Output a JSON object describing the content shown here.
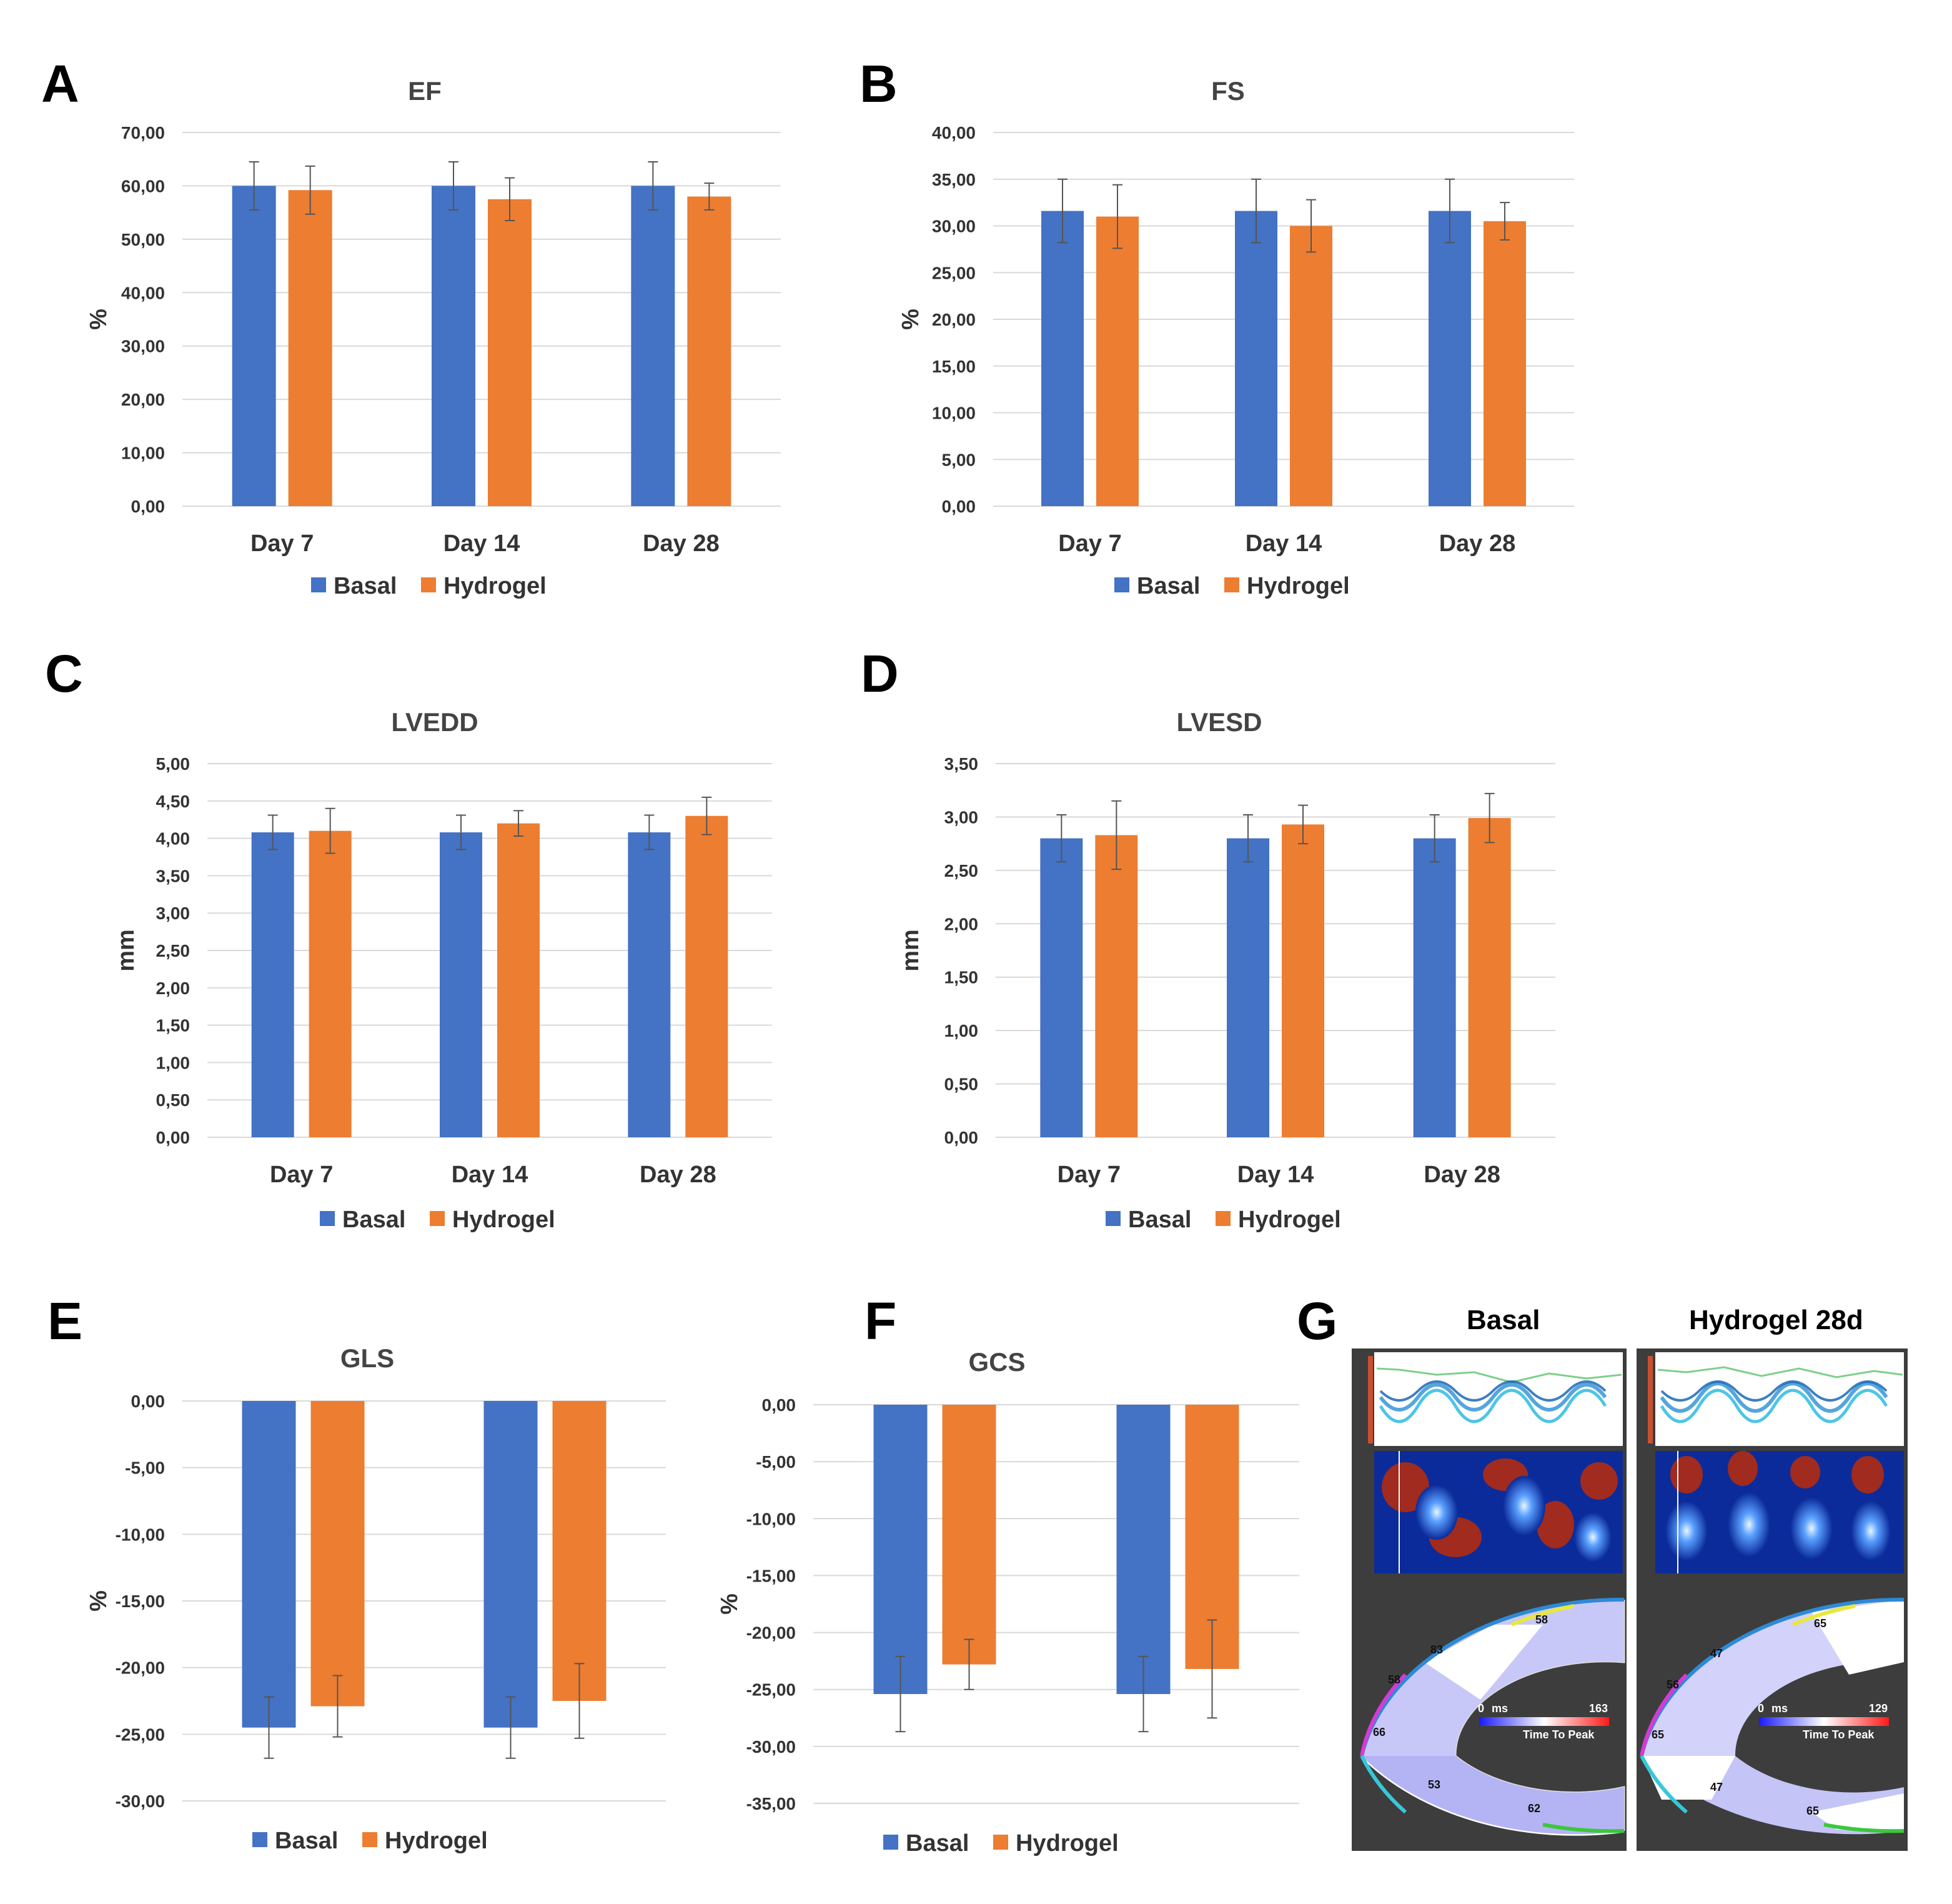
{
  "colors": {
    "basal": "#4472C4",
    "hydrogel": "#ED7D31",
    "grid": "#d9d9d9",
    "error": "#555555"
  },
  "legend": {
    "basal": "Basal",
    "hydrogel": "Hydrogel"
  },
  "panel_letters": [
    "A",
    "B",
    "C",
    "D",
    "E",
    "F",
    "G"
  ],
  "chart_data": [
    {
      "id": "A",
      "type": "bar",
      "title": "EF",
      "ylabel": "%",
      "ylim": [
        0,
        70
      ],
      "ystep": 10,
      "categories": [
        "Day 7",
        "Day 14",
        "Day 28"
      ],
      "yticks": [
        "0,00",
        "10,00",
        "20,00",
        "30,00",
        "40,00",
        "50,00",
        "60,00",
        "70,00"
      ],
      "series": [
        {
          "name": "Basal",
          "values": [
            60.0,
            60.0,
            60.0
          ],
          "errors": [
            4.5,
            4.5,
            4.5
          ]
        },
        {
          "name": "Hydrogel",
          "values": [
            59.2,
            57.5,
            58.0
          ],
          "errors": [
            4.5,
            4.0,
            2.5
          ]
        }
      ]
    },
    {
      "id": "B",
      "type": "bar",
      "title": "FS",
      "ylabel": "%",
      "ylim": [
        0,
        40
      ],
      "ystep": 5,
      "categories": [
        "Day 7",
        "Day 14",
        "Day 28"
      ],
      "yticks": [
        "0,00",
        "5,00",
        "10,00",
        "15,00",
        "20,00",
        "25,00",
        "30,00",
        "35,00",
        "40,00"
      ],
      "series": [
        {
          "name": "Basal",
          "values": [
            31.6,
            31.6,
            31.6
          ],
          "errors": [
            3.4,
            3.4,
            3.4
          ]
        },
        {
          "name": "Hydrogel",
          "values": [
            31.0,
            30.0,
            30.5
          ],
          "errors": [
            3.4,
            2.8,
            2.0
          ]
        }
      ]
    },
    {
      "id": "C",
      "type": "bar",
      "title": "LVEDD",
      "ylabel": "mm",
      "ylim": [
        0,
        5
      ],
      "ystep": 0.5,
      "categories": [
        "Day 7",
        "Day 14",
        "Day 28"
      ],
      "yticks": [
        "0,00",
        "0,50",
        "1,00",
        "1,50",
        "2,00",
        "2,50",
        "3,00",
        "3,50",
        "4,00",
        "4,50",
        "5,00"
      ],
      "series": [
        {
          "name": "Basal",
          "values": [
            4.08,
            4.08,
            4.08
          ],
          "errors": [
            0.23,
            0.23,
            0.23
          ]
        },
        {
          "name": "Hydrogel",
          "values": [
            4.1,
            4.2,
            4.3
          ],
          "errors": [
            0.3,
            0.17,
            0.25
          ]
        }
      ]
    },
    {
      "id": "D",
      "type": "bar",
      "title": "LVESD",
      "ylabel": "mm",
      "ylim": [
        0,
        3.5
      ],
      "ystep": 0.5,
      "categories": [
        "Day 7",
        "Day 14",
        "Day 28"
      ],
      "yticks": [
        "0,00",
        "0,50",
        "1,00",
        "1,50",
        "2,00",
        "2,50",
        "3,00",
        "3,50"
      ],
      "series": [
        {
          "name": "Basal",
          "values": [
            2.8,
            2.8,
            2.8
          ],
          "errors": [
            0.22,
            0.22,
            0.22
          ]
        },
        {
          "name": "Hydrogel",
          "values": [
            2.83,
            2.93,
            2.99
          ],
          "errors": [
            0.32,
            0.18,
            0.23
          ]
        }
      ]
    },
    {
      "id": "E",
      "type": "bar",
      "title": "GLS",
      "ylabel": "%",
      "ylim": [
        -30,
        0
      ],
      "ystep": 5,
      "categories": [
        "",
        ""
      ],
      "yticks": [
        "-30,00",
        "-25,00",
        "-20,00",
        "-15,00",
        "-10,00",
        "-5,00",
        "0,00"
      ],
      "series": [
        {
          "name": "Basal",
          "values": [
            -24.5,
            -24.5
          ],
          "errors": [
            2.3,
            2.3
          ]
        },
        {
          "name": "Hydrogel",
          "values": [
            -22.9,
            -22.5
          ],
          "errors": [
            2.3,
            2.8
          ]
        }
      ]
    },
    {
      "id": "F",
      "type": "bar",
      "title": "GCS",
      "ylabel": "%",
      "ylim": [
        -35,
        0
      ],
      "ystep": 5,
      "categories": [
        "",
        ""
      ],
      "yticks": [
        "-35,00",
        "-30,00",
        "-25,00",
        "-20,00",
        "-15,00",
        "-10,00",
        "-5,00",
        "0,00"
      ],
      "series": [
        {
          "name": "Basal",
          "values": [
            -25.4,
            -25.4
          ],
          "errors": [
            3.3,
            3.3
          ]
        },
        {
          "name": "Hydrogel",
          "values": [
            -22.8,
            -23.2
          ],
          "errors": [
            2.2,
            4.3
          ]
        }
      ]
    }
  ],
  "panel_g": {
    "titles": [
      "Basal",
      "Hydrogel 28d"
    ],
    "units": "ms",
    "range_labels": [
      {
        "min": "0",
        "max": "163",
        "label": "Time To Peak"
      },
      {
        "min": "0",
        "max": "129",
        "label": "Time To Peak"
      }
    ],
    "segments": [
      [
        "83",
        "58",
        "58",
        "66",
        "53",
        "62"
      ],
      [
        "65",
        "47",
        "56",
        "65",
        "47",
        "65"
      ]
    ]
  }
}
